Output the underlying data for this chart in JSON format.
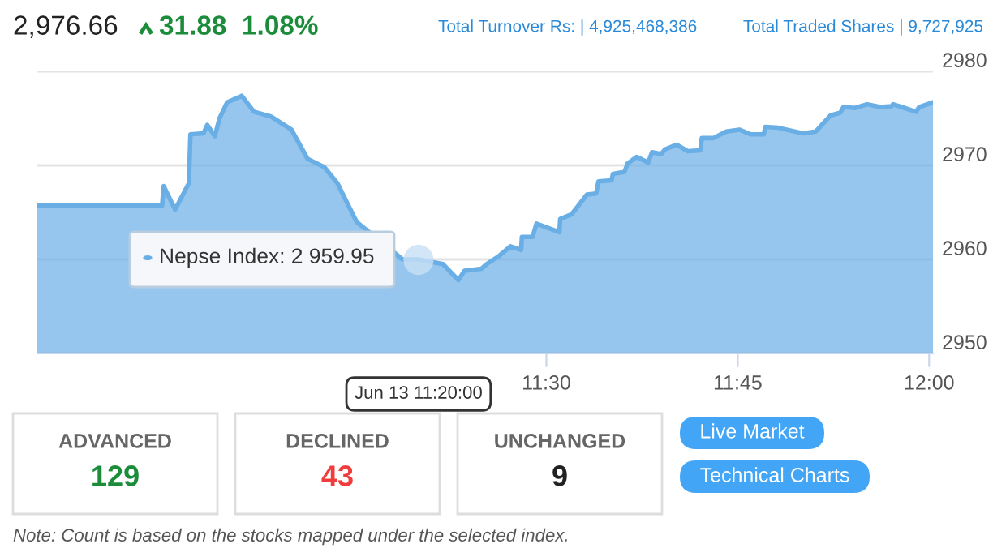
{
  "chart_data": [
    {
      "type": "area",
      "series": [
        {
          "color": "#6aaee6",
          "values": [
            2965.7,
            2965.7,
            2967.8,
            2965.3,
            2968.1,
            2973.3,
            2973.4,
            2974.3,
            2973.1,
            2975.0,
            2976.7,
            2977.4,
            2975.7,
            2975.2,
            2973.8,
            2970.7,
            2969.8,
            2968.1,
            2964.0,
            2960.0,
            2960.0,
            2959.5,
            2957.8,
            2958.8,
            2959.0,
            2959.5,
            2960.3,
            2961.4,
            2961.0,
            2962.4,
            2962.4,
            2963.8,
            2962.9,
            2964.3,
            2964.8,
            2966.9,
            2967.0,
            2968.3,
            2968.4,
            2969.1,
            2969.3,
            2970.2,
            2970.9,
            2970.3,
            2971.4,
            2971.2,
            2971.7,
            2972.2,
            2971.5,
            2971.6,
            2972.9,
            2972.9,
            2973.6,
            2973.8,
            2973.3,
            2973.3,
            2974.1,
            2974.0,
            2973.4,
            2973.6,
            2975.3,
            2975.6,
            2976.2,
            2976.1,
            2976.5,
            2976.2,
            2976.3,
            2976.5,
            2976.1,
            2975.7,
            2976.2,
            2976.7
          ]
        }
      ],
      "x": [
        10.835,
        10.998,
        11.0,
        11.015,
        11.033,
        11.035,
        11.052,
        11.057,
        11.067,
        11.073,
        11.083,
        11.102,
        11.118,
        11.14,
        11.167,
        11.188,
        11.21,
        11.227,
        11.252,
        11.312,
        11.333,
        11.365,
        11.385,
        11.393,
        11.415,
        11.422,
        11.437,
        11.453,
        11.467,
        11.468,
        11.482,
        11.487,
        11.517,
        11.518,
        11.533,
        11.553,
        11.565,
        11.568,
        11.585,
        11.587,
        11.602,
        11.606,
        11.618,
        11.633,
        11.638,
        11.65,
        11.655,
        11.67,
        11.685,
        11.701,
        11.703,
        11.718,
        11.735,
        11.752,
        11.767,
        11.784,
        11.786,
        11.803,
        11.835,
        11.852,
        11.871,
        11.884,
        11.888,
        11.903,
        11.919,
        11.936,
        11.951,
        11.953,
        11.968,
        11.983,
        11.987,
        12.005
      ],
      "xlim": [
        10.835,
        12.005
      ],
      "ylim": [
        2950,
        2980
      ],
      "xticks": [
        {
          "value": 11.5,
          "label": "11:30"
        },
        {
          "value": 11.75,
          "label": "11:45"
        },
        {
          "value": 12.0,
          "label": "12:00"
        }
      ],
      "yticks": [
        2950,
        2960,
        2970,
        2980
      ],
      "grid": "y",
      "marker": "none",
      "line_style": "solid",
      "legend": false,
      "annotations": [
        "2,976.66",
        "31.88",
        "1.08%",
        "Total Turnover Rs: | 4,925,468,386",
        "Total Traded Shares | 9,727,925",
        {
          "text": "Nepse Index: 2 959.95",
          "x": 11.333,
          "y": 2959.95
        },
        "Jun 13 11:20:00"
      ]
    },
    {
      "type": "other",
      "annotations": [
        "ADVANCED",
        "129",
        "DECLINED",
        "43",
        "UNCHANGED",
        "9",
        "Live Market",
        "Technical Charts",
        "Note: Count is based on the stocks mapped under the selected index."
      ]
    }
  ]
}
